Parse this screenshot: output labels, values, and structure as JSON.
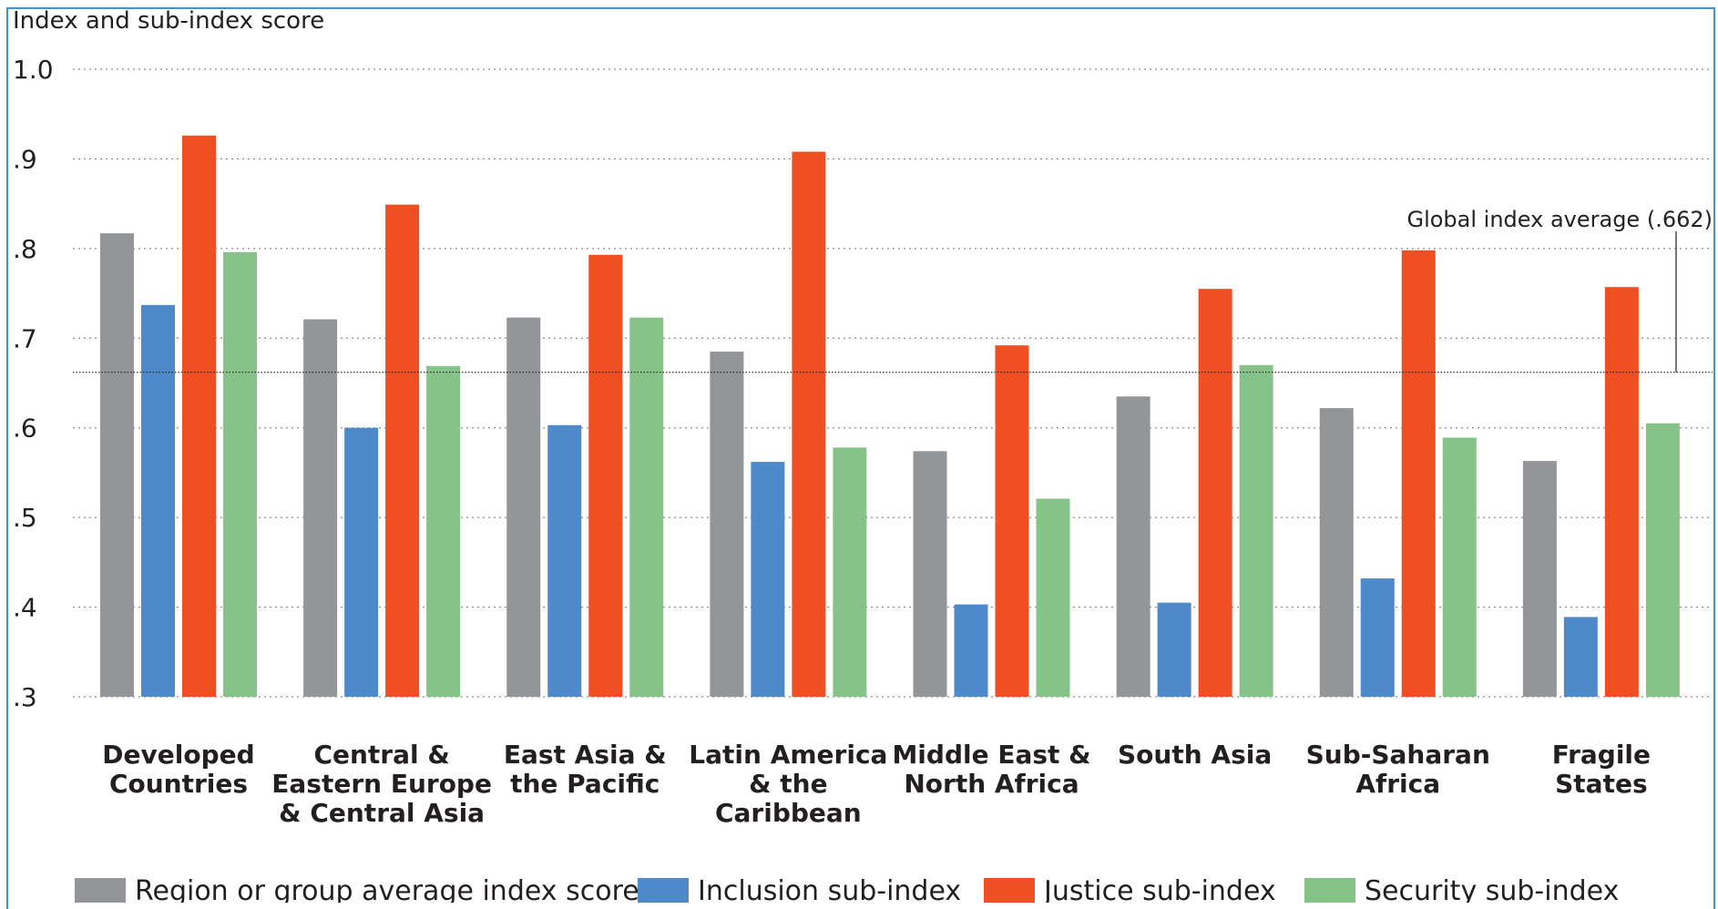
{
  "chart_data": {
    "type": "bar",
    "ylabel": "Index and sub-index score",
    "ylim": [
      0.3,
      1.0
    ],
    "yticks": [
      {
        "value": 1.0,
        "label": "1.0"
      },
      {
        "value": 0.9,
        "label": ".9"
      },
      {
        "value": 0.8,
        "label": ".8"
      },
      {
        "value": 0.7,
        "label": ".7"
      },
      {
        "value": 0.6,
        "label": ".6"
      },
      {
        "value": 0.5,
        "label": ".5"
      },
      {
        "value": 0.4,
        "label": ".4"
      },
      {
        "value": 0.3,
        "label": ".3"
      }
    ],
    "grid": true,
    "categories": [
      [
        "Developed",
        "Countries"
      ],
      [
        "Central &",
        "Eastern Europe",
        "& Central Asia"
      ],
      [
        "East Asia &",
        "the Pacific"
      ],
      [
        "Latin America",
        "& the",
        "Caribbean"
      ],
      [
        "Middle East &",
        "North Africa"
      ],
      [
        "South Asia"
      ],
      [
        "Sub-Saharan",
        "Africa"
      ],
      [
        "Fragile",
        "States"
      ]
    ],
    "series": [
      {
        "name": "Region or group average index score",
        "color": "#939598",
        "values": [
          0.817,
          0.721,
          0.723,
          0.685,
          0.574,
          0.635,
          0.622,
          0.563
        ]
      },
      {
        "name": "Inclusion sub-index",
        "color": "#4e89c9",
        "values": [
          0.737,
          0.6,
          0.603,
          0.562,
          0.403,
          0.405,
          0.432,
          0.389
        ]
      },
      {
        "name": "Justice sub-index",
        "color": "#f04e23",
        "values": [
          0.926,
          0.849,
          0.793,
          0.908,
          0.692,
          0.755,
          0.798,
          0.757
        ]
      },
      {
        "name": "Security sub-index",
        "color": "#86c388",
        "values": [
          0.796,
          0.669,
          0.723,
          0.578,
          0.521,
          0.67,
          0.589,
          0.605
        ]
      }
    ],
    "reference_line": {
      "value": 0.662,
      "label": "Global index average (.662)"
    },
    "legend_position": "bottom"
  }
}
